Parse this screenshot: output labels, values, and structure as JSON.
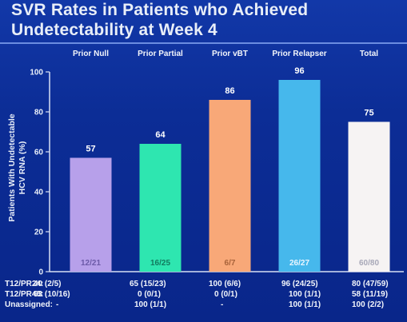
{
  "title_line1": "SVR Rates in Patients who Achieved",
  "title_line2": "Undetectability at Week 4",
  "chart_data": {
    "type": "bar",
    "categories": [
      "Prior Null",
      "Prior Partial",
      "Prior vBT",
      "Prior Relapser",
      "Total"
    ],
    "values": [
      57,
      64,
      86,
      96,
      75
    ],
    "bar_labels": [
      "12/21",
      "16/25",
      "6/7",
      "26/27",
      "60/80"
    ],
    "colors": [
      "#b7a0ea",
      "#2ee6b0",
      "#f8a878",
      "#46b8ec",
      "#f6f3f3"
    ],
    "ylabel_line1": "Patients With Undetectable",
    "ylabel_line2": "HCV RNA (%)",
    "xlabel": "",
    "yticks": [
      0,
      20,
      40,
      60,
      80,
      100
    ],
    "ylim": [
      0,
      100
    ],
    "grid": false
  },
  "table": {
    "rows": [
      {
        "label": "T12/PR24:",
        "cells": [
          "40 (2/5)",
          "65 (15/23)",
          "100 (6/6)",
          "96 (24/25)",
          "80 (47/59)"
        ]
      },
      {
        "label": "T12/PR48:",
        "cells": [
          "63 (10/16)",
          "0 (0/1)",
          "0 (0/1)",
          "100 (1/1)",
          "58 (11/19)"
        ]
      },
      {
        "label": "Unassigned:",
        "cells": [
          "-",
          "100 (1/1)",
          "-",
          "100 (1/1)",
          "100 (2/2)"
        ]
      }
    ]
  }
}
